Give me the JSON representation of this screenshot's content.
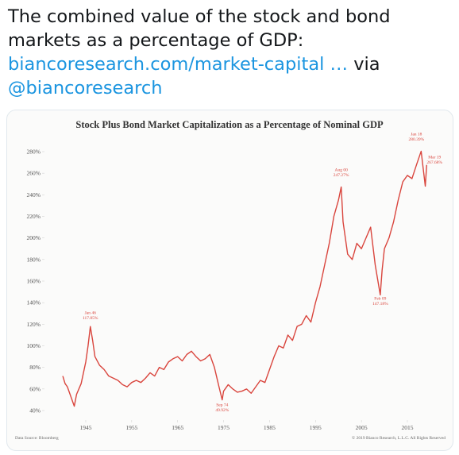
{
  "tweet": {
    "text": "The combined value of the stock and bond markets as a percentage of GDP:",
    "link": "biancoresearch.com/market-capital …",
    "via": "via",
    "mention": "@biancoresearch"
  },
  "chart_data": {
    "type": "line",
    "title": "Stock Plus Bond Market Capitalization as a Percentage of Nominal GDP",
    "source": "Data Source: Bloomberg",
    "copyright": "© 2019 Bianco Research, L.L.C. All Rights Reserved",
    "color": "#d9453d",
    "x": [
      1940,
      1940.5,
      1941,
      1942,
      1942.5,
      1943,
      1944,
      1945,
      1945.5,
      1946,
      1946.5,
      1947,
      1948,
      1949,
      1950,
      1951,
      1952,
      1953,
      1954,
      1955,
      1956,
      1957,
      1958,
      1959,
      1960,
      1961,
      1962,
      1963,
      1964,
      1965,
      1966,
      1967,
      1968,
      1969,
      1970,
      1971,
      1972,
      1973,
      1974,
      1974.7,
      1975,
      1976,
      1977,
      1978,
      1979,
      1980,
      1981,
      1982,
      1983,
      1984,
      1985,
      1986,
      1987,
      1988,
      1989,
      1990,
      1991,
      1992,
      1993,
      1994,
      1995,
      1996,
      1997,
      1998,
      1999,
      2000,
      2000.6,
      2001,
      2002,
      2003,
      2004,
      2005,
      2006,
      2007,
      2008,
      2009.1,
      2009.5,
      2010,
      2011,
      2012,
      2013,
      2014,
      2015,
      2016,
      2017,
      2018,
      2018.9,
      2019.2
    ],
    "values": [
      72,
      65,
      62,
      50,
      44,
      55,
      65,
      85,
      100,
      117.85,
      105,
      90,
      82,
      78,
      72,
      70,
      68,
      64,
      62,
      66,
      68,
      66,
      70,
      75,
      72,
      80,
      78,
      85,
      88,
      90,
      86,
      92,
      95,
      90,
      86,
      88,
      92,
      80,
      62,
      49.92,
      58,
      64,
      60,
      57,
      58,
      60,
      56,
      62,
      68,
      66,
      78,
      90,
      100,
      98,
      110,
      105,
      118,
      120,
      128,
      122,
      140,
      155,
      175,
      195,
      220,
      235,
      247.27,
      215,
      185,
      180,
      195,
      190,
      200,
      210,
      175,
      147.18,
      170,
      190,
      200,
      215,
      235,
      252,
      258,
      255,
      268,
      280.39,
      248,
      267.68
    ],
    "xlim": [
      1937,
      2021
    ],
    "xticks": [
      1945,
      1955,
      1965,
      1975,
      1985,
      1995,
      2005,
      2015
    ],
    "ylim": [
      35,
      290
    ],
    "yticks": [
      {
        "value": 40,
        "label": "40%"
      },
      {
        "value": 60,
        "label": "60%"
      },
      {
        "value": 80,
        "label": "80%"
      },
      {
        "value": 100,
        "label": "100%"
      },
      {
        "value": 120,
        "label": "120%"
      },
      {
        "value": 140,
        "label": "140%"
      },
      {
        "value": 160,
        "label": "160%"
      },
      {
        "value": 180,
        "label": "180%"
      },
      {
        "value": 200,
        "label": "200%"
      },
      {
        "value": 220,
        "label": "220%"
      },
      {
        "value": 240,
        "label": "240%"
      },
      {
        "value": 260,
        "label": "260%"
      },
      {
        "value": 280,
        "label": "280%"
      }
    ],
    "annotations": [
      {
        "x": 1946,
        "value": 117.85,
        "date": "Jan 46",
        "label": "117.85%"
      },
      {
        "x": 1974.7,
        "value": 49.92,
        "date": "Sep 74",
        "label": "49.92%"
      },
      {
        "x": 2000.6,
        "value": 247.27,
        "date": "Aug 00",
        "label": "247.27%"
      },
      {
        "x": 2009.1,
        "value": 147.18,
        "date": "Feb 09",
        "label": "147.18%"
      },
      {
        "x": 2018,
        "value": 280.39,
        "date": "Jan 18",
        "label": "280.39%"
      },
      {
        "x": 2019.2,
        "value": 267.68,
        "date": "Mar 19",
        "label": "267.68%"
      }
    ]
  }
}
